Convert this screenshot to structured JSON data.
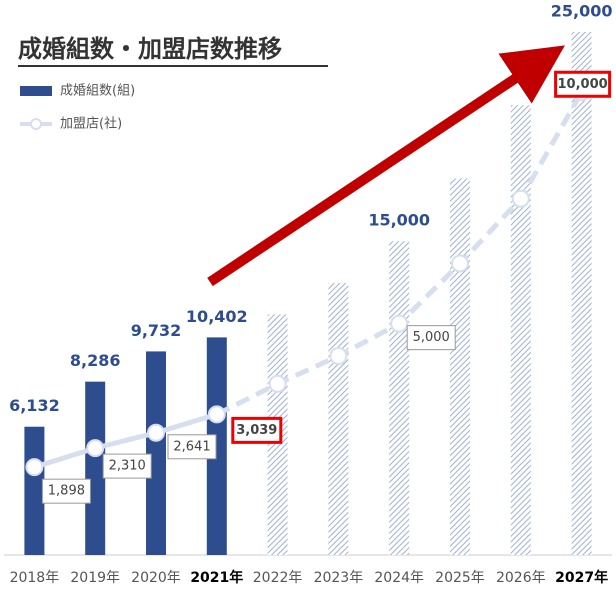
{
  "chart_data": {
    "type": "bar_line",
    "title": "成婚組数・加盟店数推移",
    "categories": [
      "2018年",
      "2019年",
      "2020年",
      "2021年",
      "2022年",
      "2023年",
      "2024年",
      "2025年",
      "2026年",
      "2027年"
    ],
    "highlight_categories": [
      3,
      9
    ],
    "forecast_from": 4,
    "boxed_labels": [
      3,
      9
    ],
    "ylim": [
      0,
      25000
    ],
    "y2lim": [
      0,
      11000
    ],
    "series": [
      {
        "name": "成婚組数(組)",
        "color": "#2e4d8f",
        "values": [
          6132,
          8286,
          9732,
          10402,
          11500,
          13000,
          15000,
          18000,
          21500,
          25000
        ],
        "value_labels": [
          "6,132",
          "8,286",
          "9,732",
          "10,402",
          null,
          null,
          "15,000",
          null,
          null,
          "25,000"
        ]
      },
      {
        "name": "加盟店(社)",
        "color": "#d6deef",
        "axis": "y2",
        "values": [
          1898,
          2310,
          2641,
          3039,
          3700,
          4300,
          5000,
          6300,
          7700,
          10000
        ],
        "value_labels": [
          "1,898",
          "2,310",
          "2,641",
          "3,039",
          null,
          null,
          "5,000",
          null,
          null,
          "10,000"
        ]
      }
    ]
  }
}
